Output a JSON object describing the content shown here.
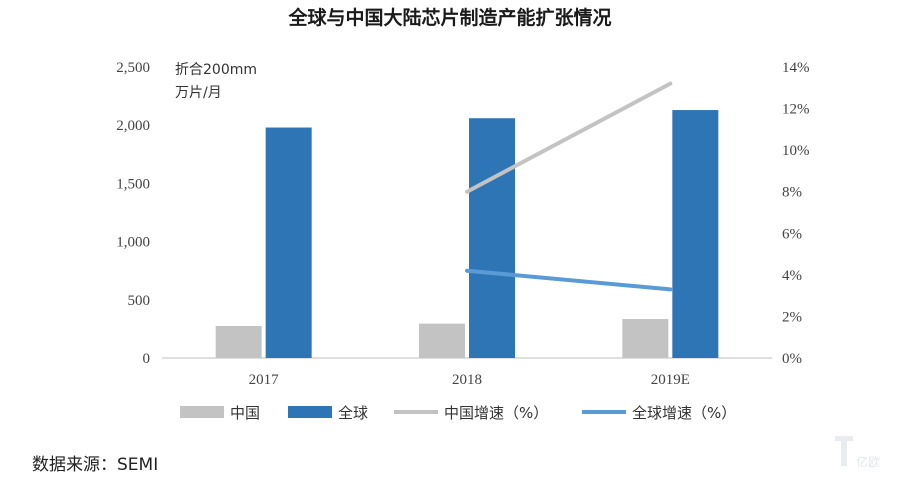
{
  "chart_data": {
    "type": "bar",
    "title": "全球与中国大陆芯片制造产能扩张情况",
    "unit_label_line1": "折合200mm",
    "unit_label_line2": "万片/月",
    "categories": [
      "2017",
      "2018",
      "2019E"
    ],
    "ylim": [
      0,
      2500
    ],
    "yticks": [
      "0",
      "500",
      "1,000",
      "1,500",
      "2,000",
      "2,500"
    ],
    "ytick_values": [
      0,
      500,
      1000,
      1500,
      2000,
      2500
    ],
    "y2lim": [
      0,
      14
    ],
    "y2ticks": [
      "0%",
      "2%",
      "4%",
      "6%",
      "8%",
      "10%",
      "12%",
      "14%"
    ],
    "y2tick_values": [
      0,
      2,
      4,
      6,
      8,
      10,
      12,
      14
    ],
    "series": [
      {
        "name": "中国",
        "type": "bar",
        "axis": "left",
        "color": "#c3c3c3",
        "values": [
          275,
          295,
          335
        ]
      },
      {
        "name": "全球",
        "type": "bar",
        "axis": "left",
        "color": "#2e75b6",
        "values": [
          1980,
          2060,
          2130
        ]
      },
      {
        "name": "中国增速（%）",
        "type": "line",
        "axis": "right",
        "color": "#c3c3c3",
        "values": [
          null,
          8.0,
          13.2
        ]
      },
      {
        "name": "全球增速（%）",
        "type": "line",
        "axis": "right",
        "color": "#5b9bd5",
        "values": [
          null,
          4.2,
          3.3
        ]
      }
    ],
    "grid": false,
    "legend_position": "bottom"
  },
  "source_text": "数据来源：SEMI",
  "watermark": "亿欧"
}
